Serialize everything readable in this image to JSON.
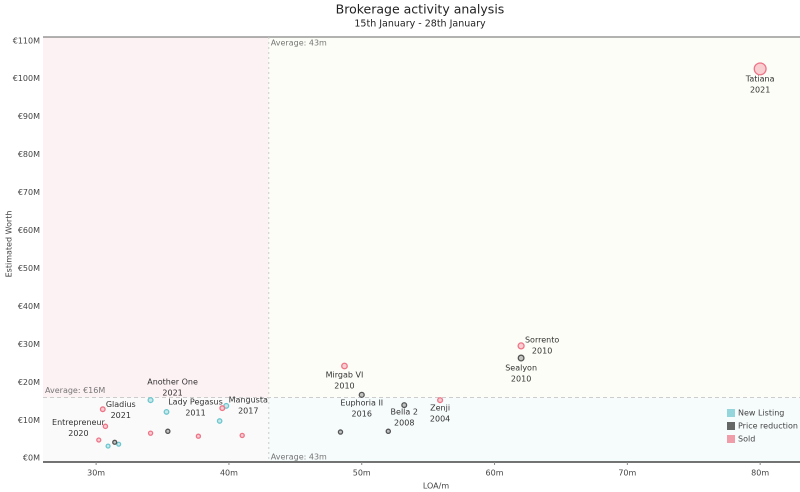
{
  "chart_data": {
    "type": "scatter",
    "title": "Brokerage activity analysis",
    "subtitle": "15th January - 28th January",
    "x_label": "LOA/m",
    "y_label": "Estimated Worth",
    "xlim": [
      26,
      83
    ],
    "ylim": [
      -1,
      111
    ],
    "xticks": [
      {
        "value": 30,
        "label": "30m"
      },
      {
        "value": 40,
        "label": "40m"
      },
      {
        "value": 50,
        "label": "50m"
      },
      {
        "value": 60,
        "label": "60m"
      },
      {
        "value": 70,
        "label": "70m"
      },
      {
        "value": 80,
        "label": "80m"
      }
    ],
    "yticks": [
      {
        "value": 0,
        "label": "€0M"
      },
      {
        "value": 10,
        "label": "€10M"
      },
      {
        "value": 20,
        "label": "€20M"
      },
      {
        "value": 30,
        "label": "€30M"
      },
      {
        "value": 40,
        "label": "€40M"
      },
      {
        "value": 50,
        "label": "€50M"
      },
      {
        "value": 60,
        "label": "€60M"
      },
      {
        "value": 70,
        "label": "€70M"
      },
      {
        "value": 80,
        "label": "€80M"
      },
      {
        "value": 90,
        "label": "€90M"
      },
      {
        "value": 100,
        "label": "€100M"
      },
      {
        "value": 110,
        "label": "€110M"
      }
    ],
    "averages": {
      "x": {
        "value": 43,
        "label": "Average: 43m"
      },
      "y": {
        "value": 16,
        "label": "Average: €16M"
      }
    },
    "legend": "bottom-right",
    "series": [
      {
        "name": "New Listing",
        "color": "#6cc6cf",
        "x": [
          34.1,
          35.3,
          39.8,
          39.3,
          30.9,
          31.7
        ],
        "values": [
          15.3,
          12.2,
          13.8,
          9.8,
          3.2,
          3.7
        ],
        "names": [
          "Another One",
          "Lady Pegasus",
          "Mangusta",
          null,
          null,
          null
        ],
        "years": [
          2021,
          2011,
          2017,
          null,
          null,
          null
        ]
      },
      {
        "name": "Price reduction",
        "color": "#555555",
        "x": [
          62,
          50,
          53.2,
          31.4,
          35.4,
          48.4,
          52
        ],
        "values": [
          26.4,
          16.7,
          14.0,
          4.2,
          7.1,
          6.9,
          7.1
        ],
        "names": [
          "Sealyon",
          "Euphoria II",
          "Bella 2",
          null,
          null,
          null,
          null
        ],
        "years": [
          2010,
          2016,
          2008,
          null,
          null,
          null,
          null
        ]
      },
      {
        "name": "Sold",
        "color": "#ee7588",
        "x": [
          80,
          62,
          48.7,
          55.9,
          30.5,
          30.7,
          39.5,
          30.2,
          34.1,
          37.7,
          41.0
        ],
        "values": [
          102.6,
          29.6,
          24.3,
          15.3,
          12.9,
          8.4,
          13.2,
          4.8,
          6.6,
          5.8,
          6.0
        ],
        "names": [
          "Tatiana",
          "Sorrento",
          "Mirgab VI",
          "Zenji",
          "Gladius",
          "Entrepreneur",
          null,
          null,
          null,
          null,
          null
        ],
        "years": [
          2021,
          2010,
          2010,
          2004,
          2021,
          2020,
          null,
          null,
          null,
          null,
          null
        ]
      }
    ]
  }
}
